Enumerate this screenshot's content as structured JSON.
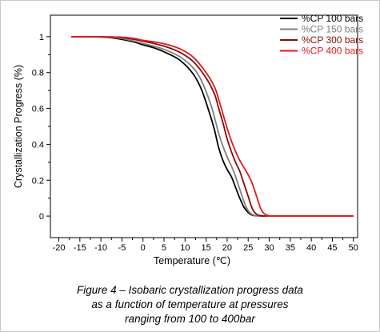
{
  "chart_data": {
    "type": "line",
    "title": "",
    "xlabel": "Temperature (℃)",
    "ylabel": "Crystallization Progress (%)",
    "xlim": [
      -22,
      51
    ],
    "ylim": [
      -0.12,
      1.12
    ],
    "xticks": [
      -20,
      -15,
      -10,
      -5,
      0,
      5,
      10,
      15,
      20,
      25,
      30,
      35,
      40,
      45,
      50
    ],
    "yticks": [
      0,
      0.2,
      0.4,
      0.6,
      0.8,
      1
    ],
    "ytick_labels": [
      "0",
      "0.2",
      "0.4",
      "0.6",
      "0.8",
      "1"
    ],
    "grid": false,
    "legend_position": "top-right",
    "series": [
      {
        "name": "%CP 100 bars",
        "color": "#000000",
        "x": [
          -17,
          -12,
          -8,
          -5,
          -2,
          0,
          3,
          6,
          9,
          12,
          14,
          16,
          17,
          18,
          19,
          20,
          21,
          22,
          23,
          24,
          25,
          26,
          27,
          28,
          29,
          30,
          50
        ],
        "y": [
          1,
          1,
          0.995,
          0.985,
          0.97,
          0.955,
          0.935,
          0.905,
          0.865,
          0.79,
          0.7,
          0.56,
          0.48,
          0.38,
          0.31,
          0.26,
          0.22,
          0.16,
          0.1,
          0.05,
          0.02,
          0.005,
          0.002,
          0,
          0,
          0,
          0
        ]
      },
      {
        "name": "%CP 150 bars",
        "color": "#7f7f7f",
        "x": [
          -17,
          -12,
          -8,
          -5,
          -2,
          0,
          3,
          6,
          9,
          12,
          14,
          16,
          17,
          18,
          19,
          20,
          21,
          22,
          23,
          24,
          25,
          26,
          27,
          28,
          29,
          50
        ],
        "y": [
          1,
          1,
          0.997,
          0.99,
          0.975,
          0.962,
          0.945,
          0.92,
          0.885,
          0.825,
          0.75,
          0.63,
          0.55,
          0.46,
          0.39,
          0.33,
          0.28,
          0.22,
          0.15,
          0.08,
          0.03,
          0.008,
          0.002,
          0,
          0,
          0
        ]
      },
      {
        "name": "%CP 300 bars",
        "color": "#8b0a0a",
        "x": [
          -17,
          -12,
          -8,
          -5,
          -2,
          0,
          3,
          6,
          9,
          12,
          15,
          17,
          18,
          19,
          20,
          21,
          22,
          23,
          24,
          25,
          26,
          27,
          28,
          29,
          30,
          50
        ],
        "y": [
          1,
          1,
          0.999,
          0.995,
          0.985,
          0.975,
          0.96,
          0.94,
          0.91,
          0.86,
          0.77,
          0.68,
          0.6,
          0.52,
          0.43,
          0.36,
          0.3,
          0.25,
          0.18,
          0.11,
          0.04,
          0.01,
          0.002,
          0,
          0,
          0
        ]
      },
      {
        "name": "%CP 400 bars",
        "color": "#e31a1c",
        "x": [
          -17,
          -12,
          -8,
          -5,
          -2,
          0,
          3,
          6,
          9,
          12,
          15,
          17,
          18,
          19,
          20,
          21,
          22,
          23,
          24,
          25,
          26,
          27,
          28,
          29,
          30,
          31,
          50
        ],
        "y": [
          1,
          1,
          0.999,
          0.997,
          0.99,
          0.98,
          0.97,
          0.955,
          0.93,
          0.885,
          0.8,
          0.72,
          0.65,
          0.57,
          0.49,
          0.42,
          0.36,
          0.31,
          0.27,
          0.23,
          0.18,
          0.11,
          0.04,
          0.01,
          0.002,
          0,
          0
        ]
      }
    ]
  },
  "caption": {
    "line1": "Figure 4 – Isobaric crystallization progress data",
    "line2": "as a function of temperature at pressures",
    "line3": "ranging from 100 to 400bar"
  }
}
